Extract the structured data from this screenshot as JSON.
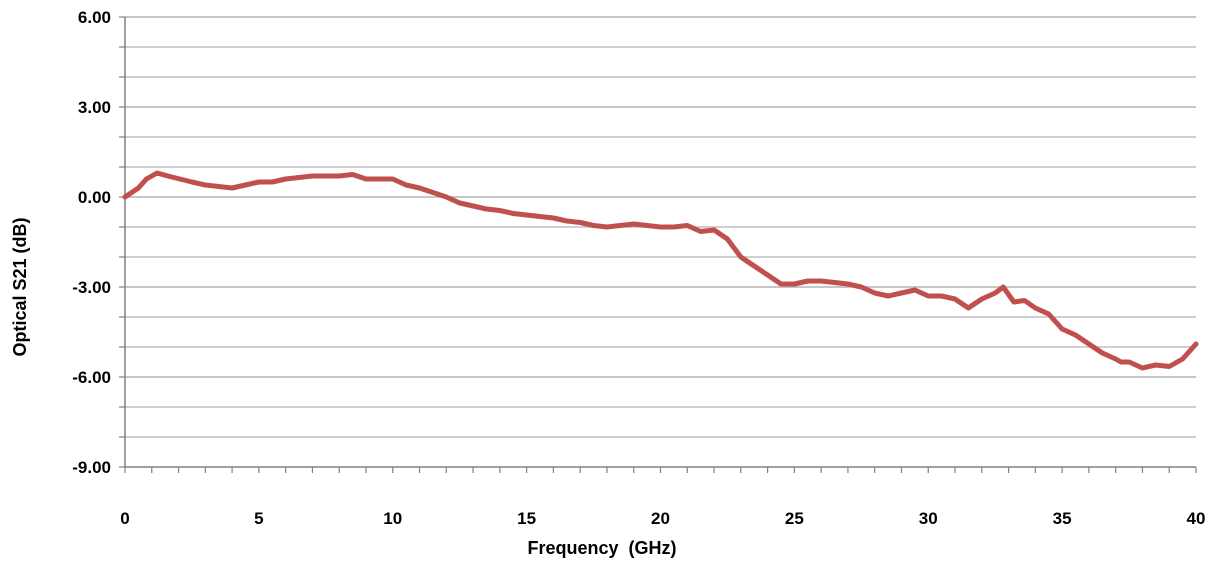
{
  "chart_data": {
    "type": "line",
    "title": "",
    "xlabel": "Frequency  (GHz)",
    "ylabel": "Optical S21 (dB)",
    "xlim": [
      0,
      40
    ],
    "ylim": [
      -9,
      6
    ],
    "x_ticks": [
      0,
      5,
      10,
      15,
      20,
      25,
      30,
      35,
      40
    ],
    "x_tick_labels": [
      "0",
      "5",
      "10",
      "15",
      "20",
      "25",
      "30",
      "35",
      "40"
    ],
    "y_ticks": [
      6,
      3,
      0,
      -3,
      -6,
      -9
    ],
    "y_tick_labels": [
      "6.00",
      "3.00",
      "0.00",
      "-3.00",
      "-6.00",
      "-9.00"
    ],
    "grid": {
      "major_y": true,
      "minor_y": true,
      "x": false
    },
    "legend": "none",
    "colors": {
      "line": "#c0504d",
      "grid": "#b4b4b4",
      "axis": "#808080"
    },
    "series": [
      {
        "x": [
          0,
          0.5,
          0.8,
          1.2,
          1.6,
          2.5,
          3,
          4,
          4.5,
          5,
          5.5,
          6,
          6.5,
          7,
          7.5,
          8,
          8.5,
          9,
          10,
          10.5,
          11,
          11.5,
          12,
          12.5,
          13,
          13.5,
          14,
          14.5,
          15,
          15.5,
          16,
          16.5,
          17,
          17.5,
          18,
          18.5,
          19,
          19.5,
          20,
          20.5,
          21,
          21.5,
          22,
          22.5,
          23,
          23.5,
          24,
          24.5,
          25,
          25.5,
          26,
          26.5,
          27,
          27.5,
          28,
          28.5,
          29,
          29.5,
          30,
          30.5,
          31,
          31.5,
          32,
          32.5,
          32.8,
          33.2,
          33.6,
          34,
          34.5,
          35,
          35.5,
          36,
          36.5,
          37,
          37.2,
          37.5,
          38,
          38.5,
          39,
          39.5,
          40
        ],
        "y": [
          0,
          0.3,
          0.6,
          0.8,
          0.7,
          0.5,
          0.4,
          0.3,
          0.4,
          0.5,
          0.5,
          0.6,
          0.65,
          0.7,
          0.7,
          0.7,
          0.75,
          0.6,
          0.6,
          0.4,
          0.3,
          0.15,
          0,
          -0.2,
          -0.3,
          -0.4,
          -0.45,
          -0.55,
          -0.6,
          -0.65,
          -0.7,
          -0.8,
          -0.85,
          -0.95,
          -1.0,
          -0.95,
          -0.9,
          -0.95,
          -1.0,
          -1.0,
          -0.95,
          -1.15,
          -1.1,
          -1.4,
          -2.0,
          -2.3,
          -2.6,
          -2.9,
          -2.9,
          -2.8,
          -2.8,
          -2.85,
          -2.9,
          -3.0,
          -3.2,
          -3.3,
          -3.2,
          -3.1,
          -3.3,
          -3.3,
          -3.4,
          -3.7,
          -3.4,
          -3.2,
          -3.0,
          -3.5,
          -3.45,
          -3.7,
          -3.9,
          -4.4,
          -4.6,
          -4.9,
          -5.2,
          -5.4,
          -5.5,
          -5.5,
          -5.7,
          -5.6,
          -5.65,
          -5.4,
          -4.9
        ]
      }
    ]
  }
}
